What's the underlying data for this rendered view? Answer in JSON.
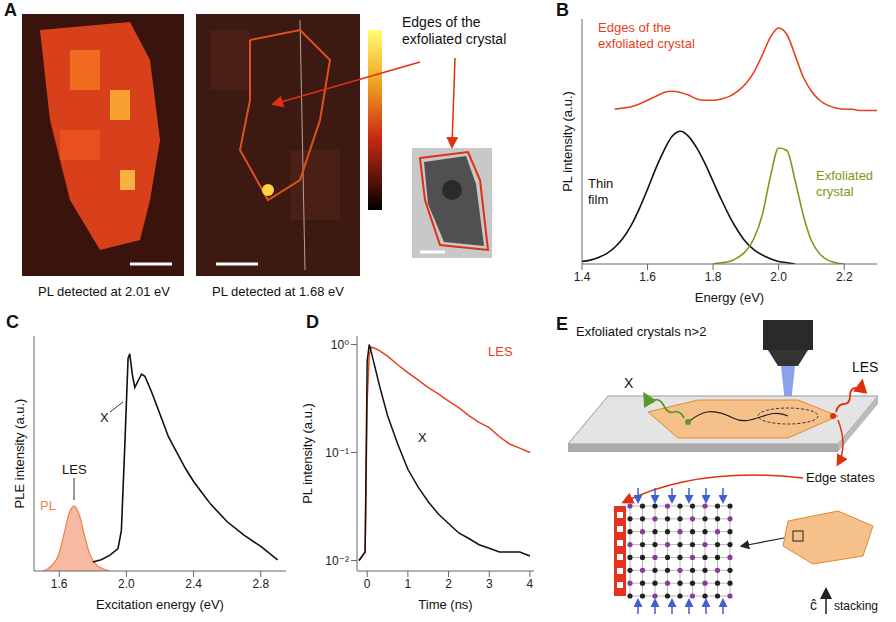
{
  "panel_a": {
    "panel": "A",
    "annotation": "Edges of the exfoliated crystal",
    "captions": [
      "PL detected at 2.01 eV",
      "PL detected at 1.68 eV"
    ]
  },
  "chart_data": [
    {
      "panel": "B",
      "type": "line",
      "x_label": "Energy (eV)",
      "y_label": "PL intensity (a.u.)",
      "x": [
        1.4,
        1.425,
        1.45,
        1.475,
        1.5,
        1.525,
        1.55,
        1.575,
        1.6,
        1.625,
        1.65,
        1.675,
        1.7,
        1.725,
        1.75,
        1.775,
        1.8,
        1.825,
        1.85,
        1.875,
        1.9,
        1.925,
        1.95,
        1.975,
        2.0,
        2.025,
        2.05,
        2.075,
        2.1,
        2.125,
        2.15,
        2.175,
        2.2,
        2.225,
        2.25,
        2.275,
        2.3
      ],
      "xlim": [
        1.4,
        2.3
      ],
      "xticks": [
        1.4,
        1.6,
        1.8,
        {
          "value": 2,
          "label": "2.0"
        },
        2.2
      ],
      "ylim": [
        0,
        1.9
      ],
      "tick_labels": "x",
      "series": [
        {
          "name": "Edges of the exfoliated crystal",
          "color": "#e8401c",
          "values": [
            null,
            null,
            null,
            null,
            1.2,
            1.21,
            1.22,
            1.24,
            1.27,
            1.3,
            1.33,
            1.34,
            1.33,
            1.31,
            1.28,
            1.27,
            1.27,
            1.28,
            1.3,
            1.34,
            1.4,
            1.49,
            1.62,
            1.76,
            1.83,
            1.78,
            1.62,
            1.45,
            1.34,
            1.27,
            1.23,
            1.21,
            1.2,
            1.2,
            1.19,
            1.19,
            1.19
          ]
        },
        {
          "name": "Thin film",
          "color": "#111111",
          "values": [
            0.02,
            0.03,
            0.05,
            0.08,
            0.13,
            0.2,
            0.3,
            0.43,
            0.58,
            0.74,
            0.88,
            0.99,
            1.03,
            0.99,
            0.9,
            0.78,
            0.64,
            0.5,
            0.37,
            0.26,
            0.17,
            0.11,
            0.07,
            0.04,
            0.02,
            0.01,
            0.0,
            null,
            null,
            null,
            null,
            null,
            null,
            null,
            null,
            null,
            null
          ]
        },
        {
          "name": "Exfoliated crystal",
          "color": "#7a9a1a",
          "values": [
            null,
            null,
            null,
            null,
            null,
            null,
            null,
            null,
            null,
            null,
            null,
            null,
            null,
            null,
            null,
            null,
            0.0,
            0.01,
            0.02,
            0.05,
            0.1,
            0.2,
            0.38,
            0.68,
            0.9,
            0.88,
            0.65,
            0.38,
            0.18,
            0.08,
            0.03,
            0.01,
            0.0,
            null,
            null,
            null,
            null
          ]
        }
      ]
    },
    {
      "panel": "C",
      "type": "line",
      "x_label": "Excitation energy (eV)",
      "y_label": "PLE intensity (a.u.)",
      "xlim": [
        1.45,
        2.95
      ],
      "xticks": [
        1.6,
        {
          "value": 2,
          "label": "2.0"
        },
        2.4,
        2.8
      ],
      "ylim": [
        0,
        1.05
      ],
      "tick_labels": "x",
      "annotations": [
        "LES",
        "X"
      ],
      "series": [
        {
          "name": "PL",
          "type": "area",
          "color": "#f08050",
          "x": [
            1.5,
            1.55,
            1.6,
            1.63,
            1.66,
            1.69,
            1.72,
            1.75,
            1.78,
            1.82,
            1.86,
            1.9
          ],
          "values": [
            0.0,
            0.02,
            0.08,
            0.17,
            0.26,
            0.29,
            0.25,
            0.16,
            0.08,
            0.03,
            0.01,
            0.0
          ]
        },
        {
          "type": "line",
          "color": "#111111",
          "x": [
            1.8,
            1.85,
            1.9,
            1.95,
            1.97,
            1.99,
            2.01,
            2.02,
            2.035,
            2.05,
            2.07,
            2.09,
            2.11,
            2.15,
            2.2,
            2.25,
            2.3,
            2.35,
            2.4,
            2.45,
            2.5,
            2.6,
            2.7,
            2.8,
            2.9
          ],
          "values": [
            0.04,
            0.05,
            0.07,
            0.1,
            0.18,
            0.55,
            0.95,
            0.97,
            0.88,
            0.82,
            0.85,
            0.88,
            0.87,
            0.8,
            0.7,
            0.6,
            0.53,
            0.46,
            0.4,
            0.35,
            0.3,
            0.22,
            0.16,
            0.11,
            0.05
          ]
        }
      ]
    },
    {
      "panel": "D",
      "type": "line",
      "x_label": "Time (ns)",
      "y_label": "PL intensity (a.u.)",
      "log": "y",
      "x": [
        -0.2,
        -0.05,
        0,
        0.05,
        0.1,
        0.2,
        0.3,
        0.5,
        0.75,
        1,
        1.25,
        1.5,
        1.75,
        2,
        2.25,
        2.5,
        2.75,
        3,
        3.25,
        3.5,
        3.75,
        4
      ],
      "xlim": [
        -0.25,
        4.1
      ],
      "xticks": [
        0,
        1,
        2,
        3,
        4
      ],
      "ylim": [
        0.008,
        1.2
      ],
      "yticks": [
        {
          "value": 0.01,
          "label": "10⁻²"
        },
        {
          "value": 0.1,
          "label": "10⁻¹"
        },
        {
          "value": 1,
          "label": "10⁰"
        }
      ],
      "series": [
        {
          "name": "LES",
          "color": "#e8401c",
          "values": [
            0.01,
            0.012,
            0.3,
            0.8,
            0.95,
            0.92,
            0.88,
            0.78,
            0.65,
            0.55,
            0.47,
            0.4,
            0.35,
            0.3,
            0.26,
            0.22,
            0.19,
            0.17,
            0.14,
            0.12,
            0.11,
            0.1
          ]
        },
        {
          "name": "X",
          "color": "#111111",
          "values": [
            0.01,
            0.012,
            0.7,
            1.0,
            0.85,
            0.6,
            0.42,
            0.22,
            0.12,
            0.07,
            0.048,
            0.035,
            0.027,
            0.022,
            0.018,
            0.016,
            0.014,
            0.013,
            0.012,
            0.012,
            0.012,
            0.011
          ]
        }
      ]
    }
  ],
  "panel_e": {
    "panel": "E",
    "title": "Exfoliated crystals n>2",
    "labels": [
      "X",
      "LES",
      "Edge states"
    ],
    "axis_symbol": "ĉ",
    "axis_label": "stacking"
  }
}
